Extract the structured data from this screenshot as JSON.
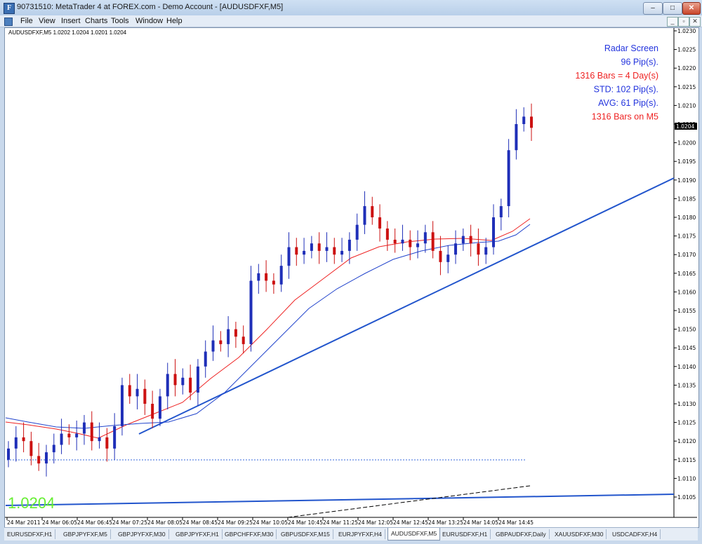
{
  "window": {
    "title": "90731510: MetaTrader 4 at FOREX.com - Demo Account - [AUDUSDFXF,M5]",
    "app_icon": "F",
    "buttons": {
      "minimize": "–",
      "maximize": "□",
      "close": "✕"
    }
  },
  "menu": {
    "items": [
      "File",
      "View",
      "Insert",
      "Charts",
      "Tools",
      "Window",
      "Help"
    ],
    "mdi_buttons": [
      "_",
      "▫",
      "✕"
    ]
  },
  "chart": {
    "header": "AUDUSDFXF,M5  1.0202 1.0204 1.0201 1.0204",
    "current_price": "1.0204",
    "big_price": "1.0204",
    "price_labels": [
      "1.0230",
      "1.0225",
      "1.0220",
      "1.0215",
      "1.0210",
      "1.0205",
      "1.0200",
      "1.0195",
      "1.0190",
      "1.0185",
      "1.0180",
      "1.0175",
      "1.0170",
      "1.0165",
      "1.0160",
      "1.0155",
      "1.0150",
      "1.0145",
      "1.0140",
      "1.0135",
      "1.0130",
      "1.0125",
      "1.0120",
      "1.0115",
      "1.0110",
      "1.0105"
    ],
    "time_labels": [
      "24 Mar 2011",
      "24 Mar 06:05",
      "24 Mar 06:45",
      "24 Mar 07:25",
      "24 Mar 08:05",
      "24 Mar 08:45",
      "24 Mar 09:25",
      "24 Mar 10:05",
      "24 Mar 10:45",
      "24 Mar 11:25",
      "24 Mar 12:05",
      "24 Mar 12:45",
      "24 Mar 13:25",
      "24 Mar 14:05",
      "24 Mar 14:45"
    ],
    "radar": [
      {
        "text": "Radar Screen",
        "color": "#2233dd"
      },
      {
        "text": "96 Pip(s).",
        "color": "#2233dd"
      },
      {
        "text": "1316 Bars = 4 Day(s)",
        "color": "#ee2222"
      },
      {
        "text": "STD: 102 Pip(s).",
        "color": "#2233dd"
      },
      {
        "text": "AVG: 61 Pip(s).",
        "color": "#2233dd"
      },
      {
        "text": "1316 Bars on M5",
        "color": "#ee2222"
      }
    ],
    "colors": {
      "bull": "#1f2fb8",
      "bear": "#cc1111",
      "doji": "#33cc33",
      "ma_fast": "#ee2222",
      "ma_slow": "#2244cc",
      "trend": "#2255cc"
    }
  },
  "chart_data": {
    "type": "candlestick",
    "symbol": "AUDUSDFXF",
    "timeframe": "M5",
    "ylim": [
      1.0103,
      1.0231
    ],
    "close_series": [
      1.0118,
      1.0121,
      1.012,
      1.0116,
      1.0114,
      1.0117,
      1.0119,
      1.0122,
      1.0121,
      1.0122,
      1.0125,
      1.012,
      1.0121,
      1.0118,
      1.0124,
      1.0135,
      1.0132,
      1.0134,
      1.013,
      1.0126,
      1.0132,
      1.0138,
      1.0135,
      1.0137,
      1.0133,
      1.014,
      1.0144,
      1.0147,
      1.0146,
      1.015,
      1.0148,
      1.0146,
      1.0163,
      1.0165,
      1.0163,
      1.0162,
      1.0167,
      1.0172,
      1.017,
      1.0171,
      1.0173,
      1.0171,
      1.0172,
      1.017,
      1.0171,
      1.0174,
      1.0178,
      1.0183,
      1.018,
      1.0177,
      1.0174,
      1.0173,
      1.0174,
      1.0172,
      1.0173,
      1.0176,
      1.0171,
      1.0168,
      1.017,
      1.0173,
      1.0175,
      1.0173,
      1.017,
      1.0172,
      1.018,
      1.0183,
      1.0198,
      1.0205,
      1.0207,
      1.0204
    ]
  }
}
